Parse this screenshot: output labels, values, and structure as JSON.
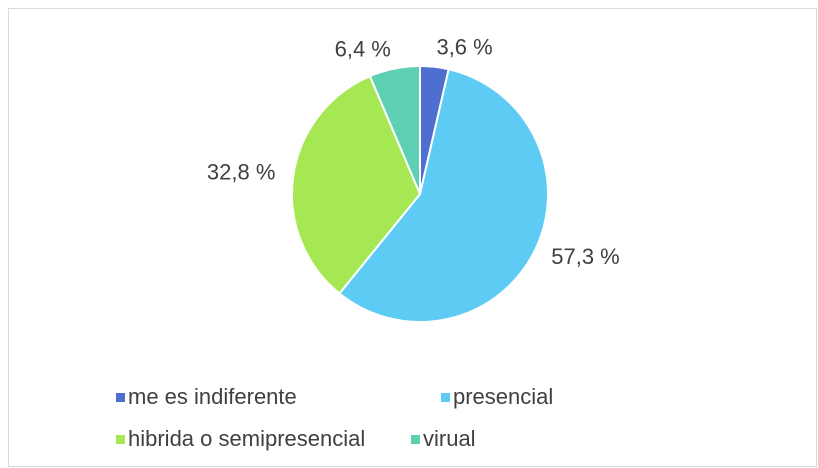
{
  "chart_data": {
    "type": "pie",
    "categories": [
      "me es indiferente",
      "presencial",
      "hibrida o semipresencial",
      "virual"
    ],
    "values": [
      3.6,
      57.3,
      32.8,
      6.4
    ],
    "value_labels": [
      "3,6 %",
      "57,3 %",
      "32,8 %",
      "6,4 %"
    ],
    "colors": [
      "#4f6fd0",
      "#5ecbf4",
      "#a6e853",
      "#5dd0b4"
    ],
    "legend": "bottom"
  }
}
